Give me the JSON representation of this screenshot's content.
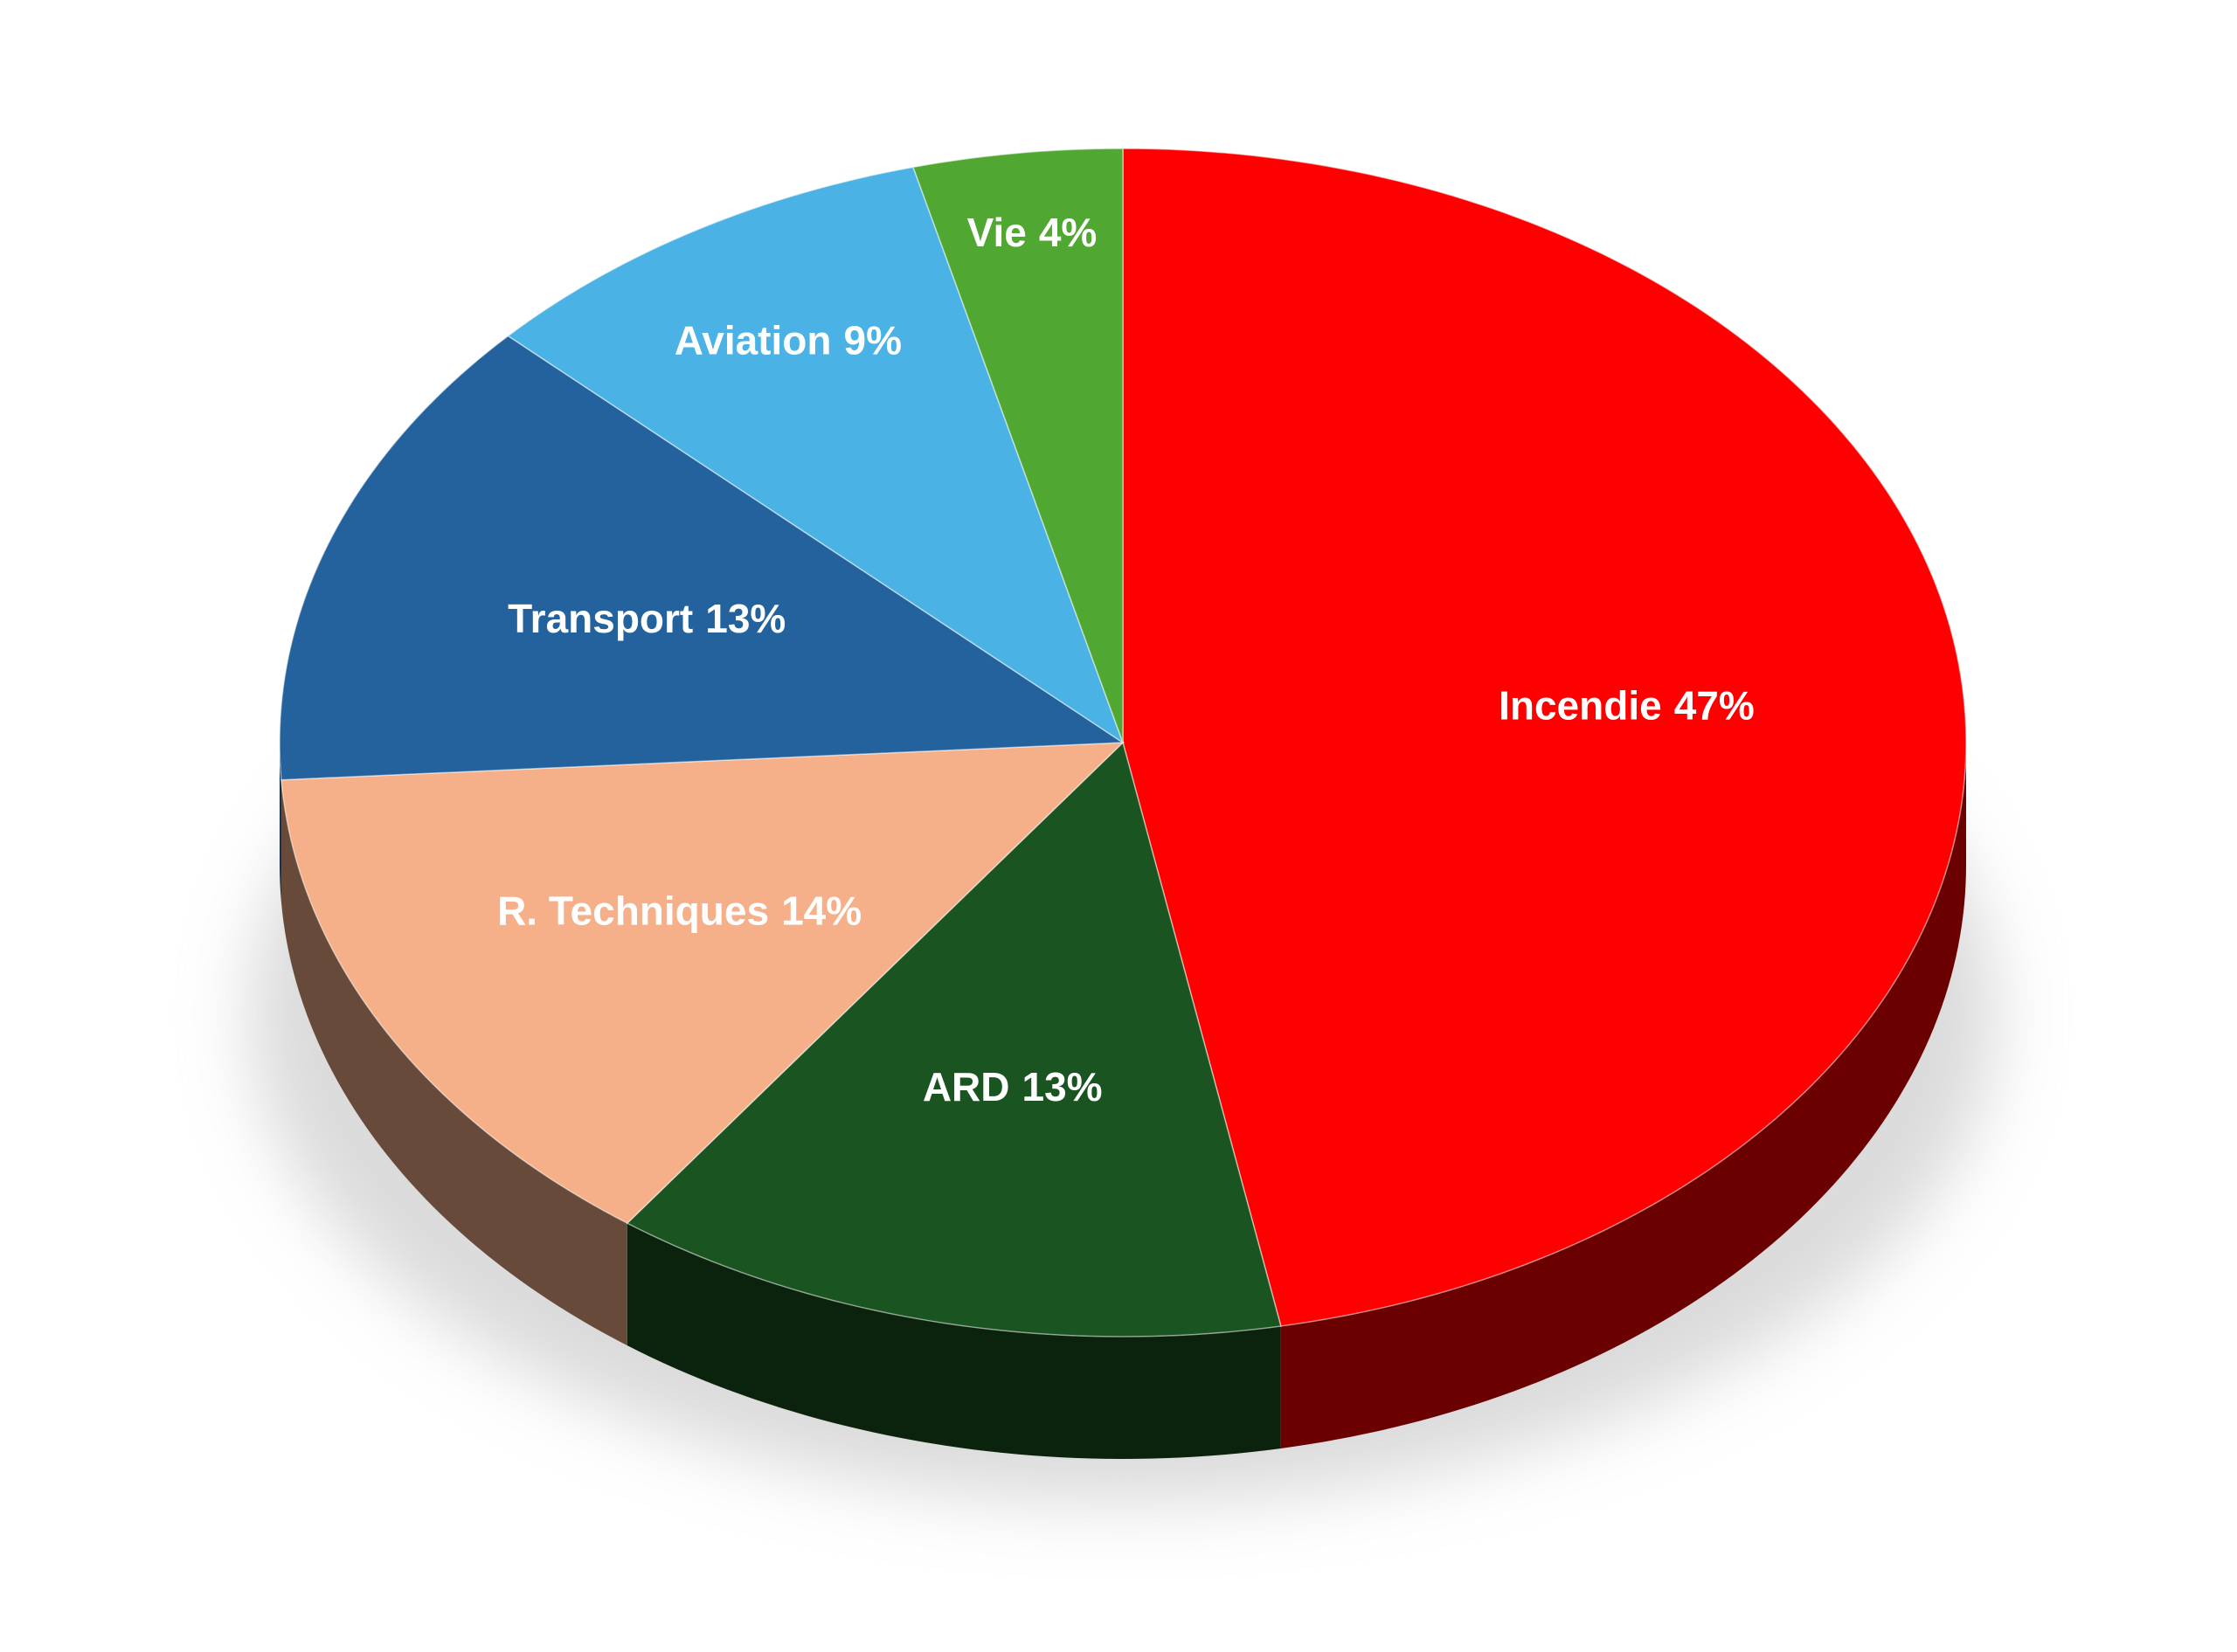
{
  "chart_data": {
    "type": "pie",
    "categories": [
      "Incendie",
      "ARD",
      "R. Techniques",
      "Transport",
      "Aviation",
      "Vie"
    ],
    "values": [
      47,
      13,
      14,
      13,
      9,
      4
    ],
    "value_labels": [
      "47%",
      "13%",
      "14%",
      "13%",
      "9%",
      "4%"
    ],
    "colors": [
      "#ff0000",
      "#1a5420",
      "#f5b08a",
      "#23629c",
      "#4ab2e4",
      "#50a832"
    ]
  }
}
